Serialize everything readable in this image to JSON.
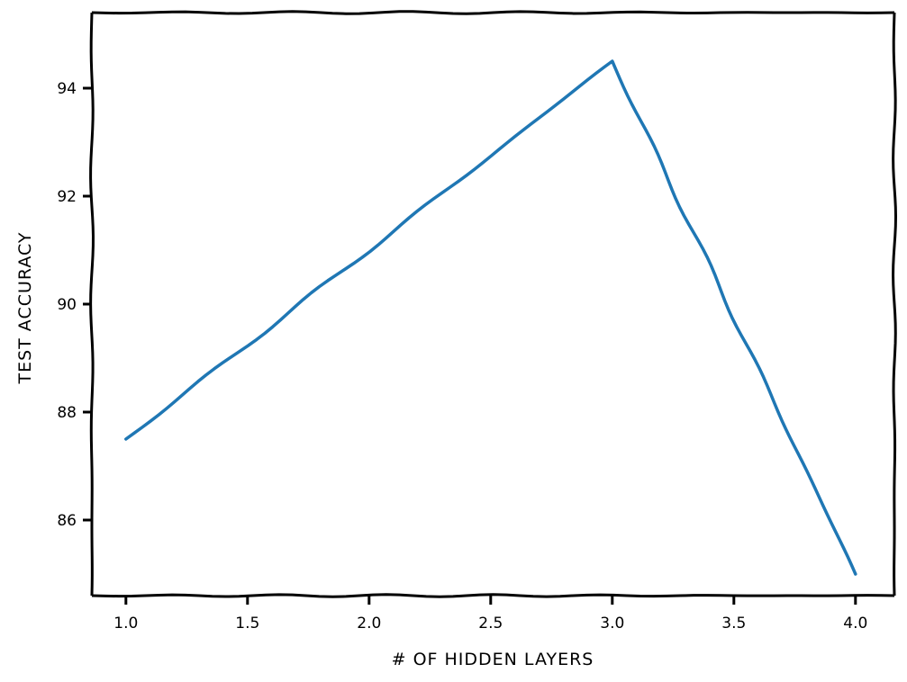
{
  "chart_data": {
    "type": "line",
    "title": "",
    "xlabel": "# OF HIDDEN LAYERS",
    "ylabel": "TEST ACCURACY",
    "xlim": [
      0.86,
      4.16
    ],
    "ylim": [
      84.6,
      95.4
    ],
    "x_ticks": [
      1.0,
      1.5,
      2.0,
      2.5,
      3.0,
      3.5,
      4.0
    ],
    "x_tick_labels": [
      "1.0",
      "1.5",
      "2.0",
      "2.5",
      "3.0",
      "3.5",
      "4.0"
    ],
    "y_ticks": [
      86,
      88,
      90,
      92,
      94
    ],
    "y_tick_labels": [
      "86",
      "88",
      "90",
      "92",
      "94"
    ],
    "grid": false,
    "legend": null,
    "series": [
      {
        "color": "#1f77b4",
        "x": [
          1.0,
          3.0,
          4.0
        ],
        "y": [
          87.5,
          94.5,
          85.0
        ]
      }
    ]
  }
}
